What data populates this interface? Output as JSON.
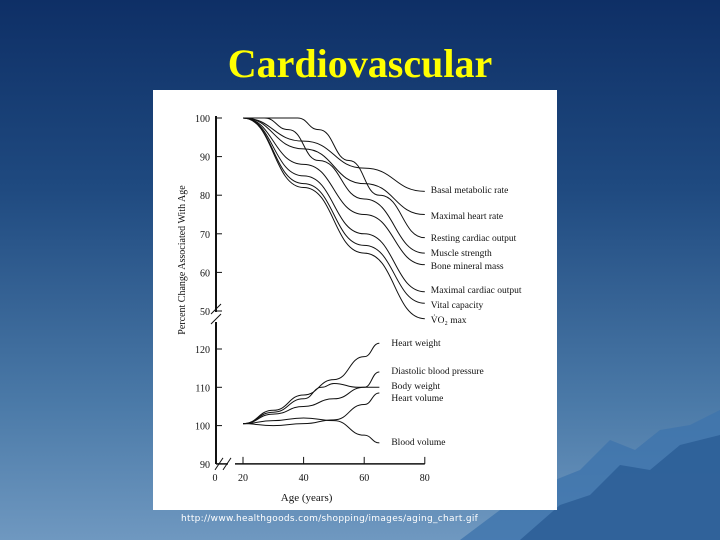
{
  "slide": {
    "title": "Cardiovascular",
    "source_url": "http://www.healthgoods.com/shopping/images/aging_chart.gif"
  },
  "colors": {
    "title": "#ffff00",
    "background_top": "#0e2f66",
    "background_bottom": "#6f98c0"
  },
  "chart_data": {
    "type": "line",
    "xlabel": "Age (years)",
    "ylabel": "Percent Change Associated With Age",
    "x_ticks": [
      "0",
      "20",
      "40",
      "60",
      "80"
    ],
    "y_ticks_upper": [
      "100",
      "90",
      "80",
      "70",
      "60",
      "50"
    ],
    "y_ticks_lower": [
      "120",
      "110",
      "100",
      "90"
    ],
    "xlim": [
      20,
      80
    ],
    "ylim_upper": [
      50,
      100
    ],
    "ylim_lower": [
      90,
      120
    ],
    "grid": false,
    "series_upper": [
      {
        "name": "Basal metabolic rate",
        "points": [
          [
            20,
            100
          ],
          [
            40,
            94
          ],
          [
            60,
            87
          ],
          [
            80,
            81
          ]
        ]
      },
      {
        "name": "Maximal heart rate",
        "points": [
          [
            20,
            100
          ],
          [
            40,
            92
          ],
          [
            60,
            83
          ],
          [
            80,
            75
          ]
        ]
      },
      {
        "name": "Resting cardiac output",
        "points": [
          [
            20,
            100
          ],
          [
            38,
            100
          ],
          [
            45,
            97
          ],
          [
            55,
            89
          ],
          [
            65,
            80
          ],
          [
            80,
            69
          ]
        ]
      },
      {
        "name": "Muscle strength",
        "points": [
          [
            20,
            100
          ],
          [
            27,
            100
          ],
          [
            35,
            97
          ],
          [
            45,
            89
          ],
          [
            60,
            79
          ],
          [
            80,
            65
          ]
        ]
      },
      {
        "name": "Bone mineral mass",
        "points": [
          [
            20,
            100
          ],
          [
            40,
            88
          ],
          [
            60,
            75
          ],
          [
            80,
            62
          ]
        ]
      },
      {
        "name": "Maximal cardiac output",
        "points": [
          [
            20,
            100
          ],
          [
            40,
            85
          ],
          [
            60,
            70
          ],
          [
            80,
            55
          ]
        ]
      },
      {
        "name": "Vital capacity",
        "points": [
          [
            20,
            100
          ],
          [
            40,
            83
          ],
          [
            60,
            67
          ],
          [
            80,
            52
          ]
        ]
      },
      {
        "name": "V̇O₂ max",
        "points": [
          [
            20,
            100
          ],
          [
            40,
            82
          ],
          [
            60,
            65
          ],
          [
            80,
            48
          ]
        ]
      }
    ],
    "series_lower": [
      {
        "name": "Heart weight",
        "points": [
          [
            20,
            100.5
          ],
          [
            30,
            104
          ],
          [
            40,
            108
          ],
          [
            50,
            112
          ],
          [
            60,
            118
          ],
          [
            65,
            121.5
          ]
        ]
      },
      {
        "name": "Diastolic blood pressure",
        "points": [
          [
            20,
            100.5
          ],
          [
            30,
            103
          ],
          [
            40,
            105
          ],
          [
            50,
            107
          ],
          [
            60,
            110
          ],
          [
            65,
            114
          ]
        ]
      },
      {
        "name": "Body weight",
        "points": [
          [
            20,
            100.5
          ],
          [
            30,
            103.5
          ],
          [
            40,
            107
          ],
          [
            46,
            110
          ],
          [
            50,
            111
          ],
          [
            58,
            110
          ],
          [
            65,
            110
          ]
        ]
      },
      {
        "name": "Heart volume",
        "points": [
          [
            20,
            100.5
          ],
          [
            30,
            100
          ],
          [
            40,
            100.5
          ],
          [
            50,
            101.5
          ],
          [
            60,
            105.5
          ],
          [
            65,
            108.5
          ]
        ]
      },
      {
        "name": "Blood volume",
        "points": [
          [
            20,
            100.5
          ],
          [
            30,
            101.3
          ],
          [
            40,
            102
          ],
          [
            50,
            101.3
          ],
          [
            60,
            97.5
          ],
          [
            65,
            95.5
          ]
        ]
      }
    ]
  }
}
